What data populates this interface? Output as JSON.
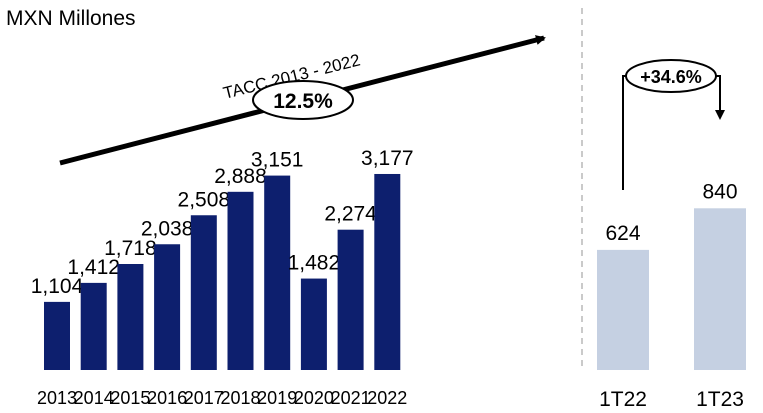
{
  "chart_data": {
    "type": "bar",
    "unit_label": "MXN Millones",
    "annual": {
      "categories": [
        "2013",
        "2014",
        "2015",
        "2016",
        "2017",
        "2018",
        "2019",
        "2020",
        "2021",
        "2022"
      ],
      "values": [
        1104,
        1412,
        1718,
        2038,
        2508,
        2888,
        3151,
        1482,
        2274,
        3177
      ],
      "labels": [
        "1,104",
        "1,412",
        "1,718",
        "2,038",
        "2,508",
        "2,888",
        "3,151",
        "1,482",
        "2,274",
        "3,177"
      ],
      "color": "#0d1f6e"
    },
    "quarterly": {
      "categories": [
        "1T22",
        "1T23"
      ],
      "values": [
        624,
        840
      ],
      "labels": [
        "624",
        "840"
      ],
      "color": "#c5d0e2"
    },
    "growth_annotations": [
      {
        "caption": "TACC 2013 - 2022",
        "value": "12.5%"
      },
      {
        "value": "+34.6%"
      }
    ]
  }
}
